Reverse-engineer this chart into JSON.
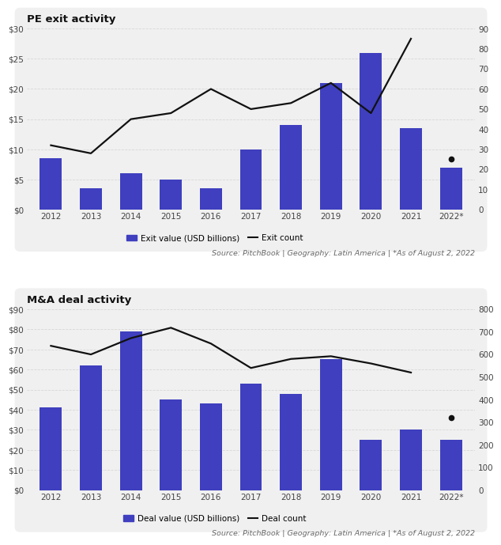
{
  "pe_exit": {
    "title": "PE exit activity",
    "years": [
      "2012",
      "2013",
      "2014",
      "2015",
      "2016",
      "2017",
      "2018",
      "2019",
      "2020",
      "2021",
      "2022*"
    ],
    "bar_values": [
      8.5,
      3.5,
      6.0,
      5.0,
      3.5,
      10.0,
      14.0,
      21.0,
      26.0,
      13.5,
      7.0
    ],
    "line_values": [
      32,
      28,
      45,
      48,
      60,
      50,
      53,
      63,
      48,
      85
    ],
    "dot_value": 25,
    "bar_color": "#3F3FBF",
    "line_color": "#111111",
    "ylim_left": [
      0,
      30
    ],
    "ylim_right": [
      0,
      90
    ],
    "yticks_left": [
      0,
      5,
      10,
      15,
      20,
      25,
      30
    ],
    "yticks_right": [
      0,
      10,
      20,
      30,
      40,
      50,
      60,
      70,
      80,
      90
    ],
    "yticklabels_left": [
      "$0",
      "$5",
      "$10",
      "$15",
      "$20",
      "$25",
      "$30"
    ],
    "yticklabels_right": [
      "0",
      "10",
      "20",
      "30",
      "40",
      "50",
      "60",
      "70",
      "80",
      "90"
    ],
    "legend_bar": "Exit value (USD billions)",
    "legend_line": "Exit count",
    "source": "Source: PitchBook | Geography: Latin America | *As of August 2, 2022"
  },
  "ma_deal": {
    "title": "M&A deal activity",
    "years": [
      "2012",
      "2013",
      "2014",
      "2015",
      "2016",
      "2017",
      "2018",
      "2019",
      "2020",
      "2021",
      "2022*"
    ],
    "bar_values": [
      41,
      62,
      79,
      45,
      43,
      53,
      48,
      65,
      25,
      30,
      25
    ],
    "line_values": [
      638,
      600,
      672,
      718,
      648,
      540,
      580,
      592,
      560,
      520
    ],
    "dot_value": 320,
    "bar_color": "#3F3FBF",
    "line_color": "#111111",
    "ylim_left": [
      0,
      90
    ],
    "ylim_right": [
      0,
      800
    ],
    "yticks_left": [
      0,
      10,
      20,
      30,
      40,
      50,
      60,
      70,
      80,
      90
    ],
    "yticks_right": [
      0,
      100,
      200,
      300,
      400,
      500,
      600,
      700,
      800
    ],
    "yticklabels_left": [
      "$0",
      "$10",
      "$20",
      "$30",
      "$40",
      "$50",
      "$60",
      "$70",
      "$80",
      "$90"
    ],
    "yticklabels_right": [
      "0",
      "100",
      "200",
      "300",
      "400",
      "500",
      "600",
      "700",
      "800"
    ],
    "legend_bar": "Deal value (USD billions)",
    "legend_line": "Deal count",
    "source": "Source: PitchBook | Geography: Latin America | *As of August 2, 2022"
  },
  "fig_bg": "#ffffff",
  "panel_bg": "#f0f0f0",
  "grid_color": "#d8d8d8",
  "tick_color": "#444444",
  "title_color": "#111111",
  "source_color": "#666666"
}
